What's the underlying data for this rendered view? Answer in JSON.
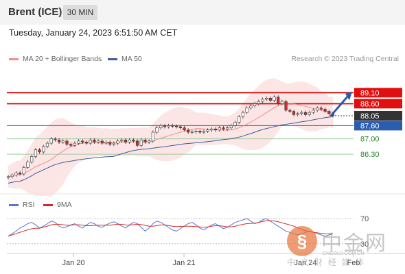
{
  "header": {
    "title": "Brent (ICE)",
    "timeframe": "30 MIN"
  },
  "timestamp": "Tuesday, January 24, 2023 6:51:50 AM CET",
  "legend": {
    "ma20": "MA 20 + Bollinger Bands",
    "ma50": "MA 50",
    "copyright": "Research © 2023 Trading Central",
    "rsi": "RSI",
    "rsi_ma": "9MA"
  },
  "colors": {
    "ma20": "#f08c8c",
    "ma50": "#3b5a9a",
    "bollinger": "#fbdada",
    "resistance": "#e01010",
    "support": "#2a5db0",
    "target": "#2a8a2a",
    "candle": "#d32b2b",
    "rsi": "#5577cc",
    "rsi_ma": "#d32b2b"
  },
  "watermark": {
    "logo": "中金网",
    "url": "CNGOLD.COM.CN",
    "sub": "中文财经媒体"
  },
  "chart_data": {
    "type": "candlestick",
    "price_range": [
      84.9,
      90.2
    ],
    "levels": [
      {
        "value": 89.1,
        "label": "89.10",
        "kind": "resistance"
      },
      {
        "value": 88.6,
        "label": "88.60",
        "kind": "resistance"
      },
      {
        "value": 88.05,
        "label": "88.05",
        "kind": "current"
      },
      {
        "value": 87.6,
        "label": "87.60",
        "kind": "support"
      },
      {
        "value": 87.0,
        "label": "87.00",
        "kind": "target"
      },
      {
        "value": 86.3,
        "label": "86.30",
        "kind": "target"
      }
    ],
    "x_labels": [
      "Jan 20",
      "Jan 21",
      "Jan 24",
      "Feb"
    ],
    "close": [
      85.28,
      85.35,
      85.45,
      85.4,
      85.7,
      85.95,
      86.2,
      86.5,
      86.4,
      86.65,
      86.8,
      87.0,
      86.95,
      86.85,
      86.9,
      86.75,
      86.7,
      86.8,
      86.9,
      86.85,
      86.8,
      86.95,
      86.85,
      86.9,
      86.8,
      86.85,
      86.75,
      86.8,
      86.9,
      86.95,
      86.85,
      86.95,
      86.9,
      86.7,
      86.95,
      86.85,
      86.9,
      87.3,
      87.5,
      87.6,
      87.55,
      87.6,
      87.58,
      87.55,
      87.5,
      87.4,
      87.3,
      87.32,
      87.35,
      87.3,
      87.35,
      87.4,
      87.45,
      87.4,
      87.5,
      87.45,
      87.5,
      87.6,
      87.75,
      88.0,
      88.2,
      88.4,
      88.5,
      88.6,
      88.7,
      88.8,
      88.85,
      88.75,
      88.9,
      88.6,
      88.7,
      88.3,
      88.25,
      88.1,
      88.15,
      88.2,
      88.1,
      88.2,
      88.3,
      88.4,
      88.35,
      88.25,
      88.15,
      88.05
    ],
    "rsi": {
      "levels": [
        70,
        30
      ],
      "values": [
        42,
        46,
        50,
        55,
        58,
        62,
        64,
        60,
        55,
        58,
        62,
        66,
        64,
        58,
        55,
        57,
        60,
        62,
        58,
        55,
        60,
        64,
        62,
        58,
        56,
        60,
        63,
        65,
        62,
        58,
        55,
        60,
        64,
        62,
        56,
        50,
        55,
        62,
        66,
        64,
        60,
        56,
        52,
        50,
        54,
        58,
        62,
        64,
        60,
        55,
        52,
        56,
        60,
        62,
        58,
        54,
        56,
        60,
        64,
        66,
        68,
        70,
        66,
        62,
        64,
        68,
        70,
        66,
        62,
        58,
        54,
        50,
        48,
        46,
        44,
        46,
        48,
        50,
        48,
        46,
        44,
        42,
        44,
        46
      ]
    }
  }
}
